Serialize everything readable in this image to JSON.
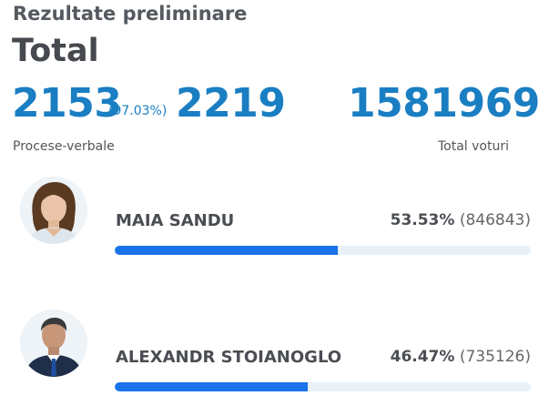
{
  "header": {
    "subtitle": "Rezultate preliminare",
    "title": "Total"
  },
  "stats": {
    "protocols_counted": "2153",
    "protocols_percent": "(97.03%)",
    "protocols_total": "2219",
    "protocols_label": "Procese-verbale",
    "total_votes": "1581969",
    "total_votes_label": "Total voturi"
  },
  "candidates": [
    {
      "name": "MAIA SANDU",
      "percent": "53.53%",
      "votes": "(846843)",
      "share": 0.5353,
      "avatar_icon": "portrait-woman-icon"
    },
    {
      "name": "ALEXANDR STOIANOGLO",
      "percent": "46.47%",
      "votes": "(735126)",
      "share": 0.4647,
      "avatar_icon": "portrait-man-icon"
    }
  ],
  "colors": {
    "accent_blue": "#1a7ec3",
    "bar_fill": "#1a73e8",
    "bar_track": "#e8f1f8"
  }
}
